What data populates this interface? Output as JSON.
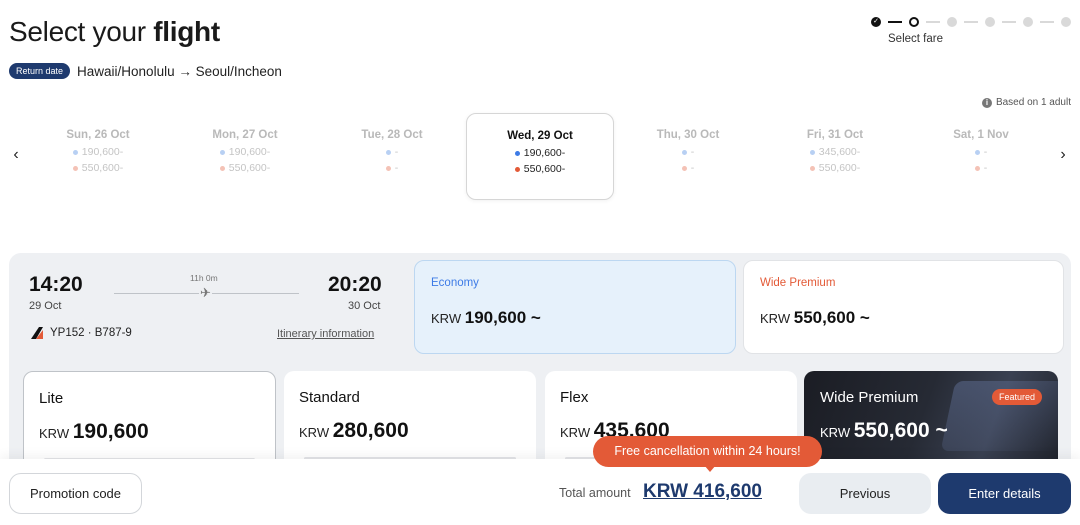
{
  "header": {
    "title_prefix": "Select your",
    "title_bold": "flight",
    "badge": "Return date",
    "route": "Hawaii/Honolulu → Seoul/Incheon"
  },
  "stepper": {
    "current_label": "Select fare",
    "total_steps": 6,
    "completed_steps": 1,
    "current_step": 2
  },
  "based_on": "Based on 1 adult",
  "dates": [
    {
      "label": "Sun, 26 Oct",
      "economy": "190,600-",
      "premium": "550,600-",
      "selected": false
    },
    {
      "label": "Mon, 27 Oct",
      "economy": "190,600-",
      "premium": "550,600-",
      "selected": false
    },
    {
      "label": "Tue, 28 Oct",
      "economy": "-",
      "premium": "-",
      "selected": false
    },
    {
      "label": "Wed, 29 Oct",
      "economy": "190,600-",
      "premium": "550,600-",
      "selected": true
    },
    {
      "label": "Thu, 30 Oct",
      "economy": "-",
      "premium": "-",
      "selected": false
    },
    {
      "label": "Fri, 31 Oct",
      "economy": "345,600-",
      "premium": "550,600-",
      "selected": false
    },
    {
      "label": "Sat, 1 Nov",
      "economy": "-",
      "premium": "-",
      "selected": false
    }
  ],
  "flight": {
    "dep_time": "14:20",
    "dep_date": "29 Oct",
    "arr_time": "20:20",
    "arr_date": "30 Oct",
    "duration": "11h 0m",
    "flight_info": "YP152 · B787-9",
    "itinerary_link": "Itinerary information"
  },
  "cabins": {
    "economy": {
      "name": "Economy",
      "currency": "KRW",
      "price": "190,600 ~"
    },
    "wide_premium": {
      "name": "Wide Premium",
      "currency": "KRW",
      "price": "550,600 ~"
    }
  },
  "fares": {
    "lite": {
      "name": "Lite",
      "currency": "KRW",
      "price": "190,600"
    },
    "standard": {
      "name": "Standard",
      "currency": "KRW",
      "price": "280,600"
    },
    "flex": {
      "name": "Flex",
      "currency": "KRW",
      "price": "435,600"
    },
    "premium": {
      "name": "Wide Premium",
      "currency": "KRW",
      "price": "550,600 ~",
      "badge": "Featured"
    }
  },
  "tooltip": "Free cancellation within 24 hours!",
  "footer": {
    "promo_label": "Promotion code",
    "total_label": "Total amount",
    "total_value": "KRW 416,600",
    "prev_label": "Previous",
    "next_label": "Enter details"
  },
  "colors": {
    "brand_navy": "#1e3a6e",
    "economy_blue": "#3d7be6",
    "premium_orange": "#e35a37"
  },
  "icons": {
    "prev_arrow": "chevron-left-icon",
    "next_arrow": "chevron-right-icon",
    "plane": "airplane-icon",
    "info": "info-icon",
    "airline": "airline-logo"
  }
}
